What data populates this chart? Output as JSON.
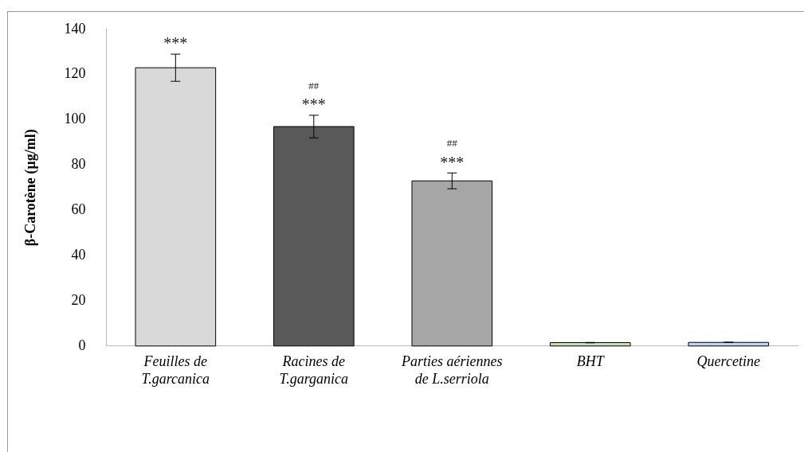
{
  "chart_data": {
    "type": "bar",
    "ylabel": "β-Carotène (µg/ml)",
    "categories": [
      "Feuilles de\nT.garcanica",
      "Racines de\nT.garganica",
      "Parties aériennes\nde L.serriola",
      "BHT",
      "Quercetine"
    ],
    "values": [
      123,
      97,
      73,
      1.5,
      1.6
    ],
    "colors": [
      "#d9d9d9",
      "#595959",
      "#a6a6a6",
      "#c5e0b4",
      "#bdd7ee"
    ],
    "errors": [
      6,
      5,
      3.5,
      0.1,
      0.1
    ],
    "ylim": [
      0,
      140
    ],
    "yticks": [
      0,
      20,
      40,
      60,
      80,
      100,
      120,
      140
    ],
    "grid": false,
    "legend": false,
    "annotations": [
      {
        "text": "***",
        "x": "Feuilles de\nT.garcanica",
        "y": 129
      },
      {
        "text": "***",
        "x": "Racines de\nT.garganica",
        "y": 102
      },
      {
        "text": "##",
        "x": "Racines de\nT.garganica",
        "y": 102
      },
      {
        "text": "***",
        "x": "Parties aériennes\nde L.serriola",
        "y": 76.5
      },
      {
        "text": "##",
        "x": "Parties aériennes\nde L.serriola",
        "y": 76.5
      }
    ]
  }
}
